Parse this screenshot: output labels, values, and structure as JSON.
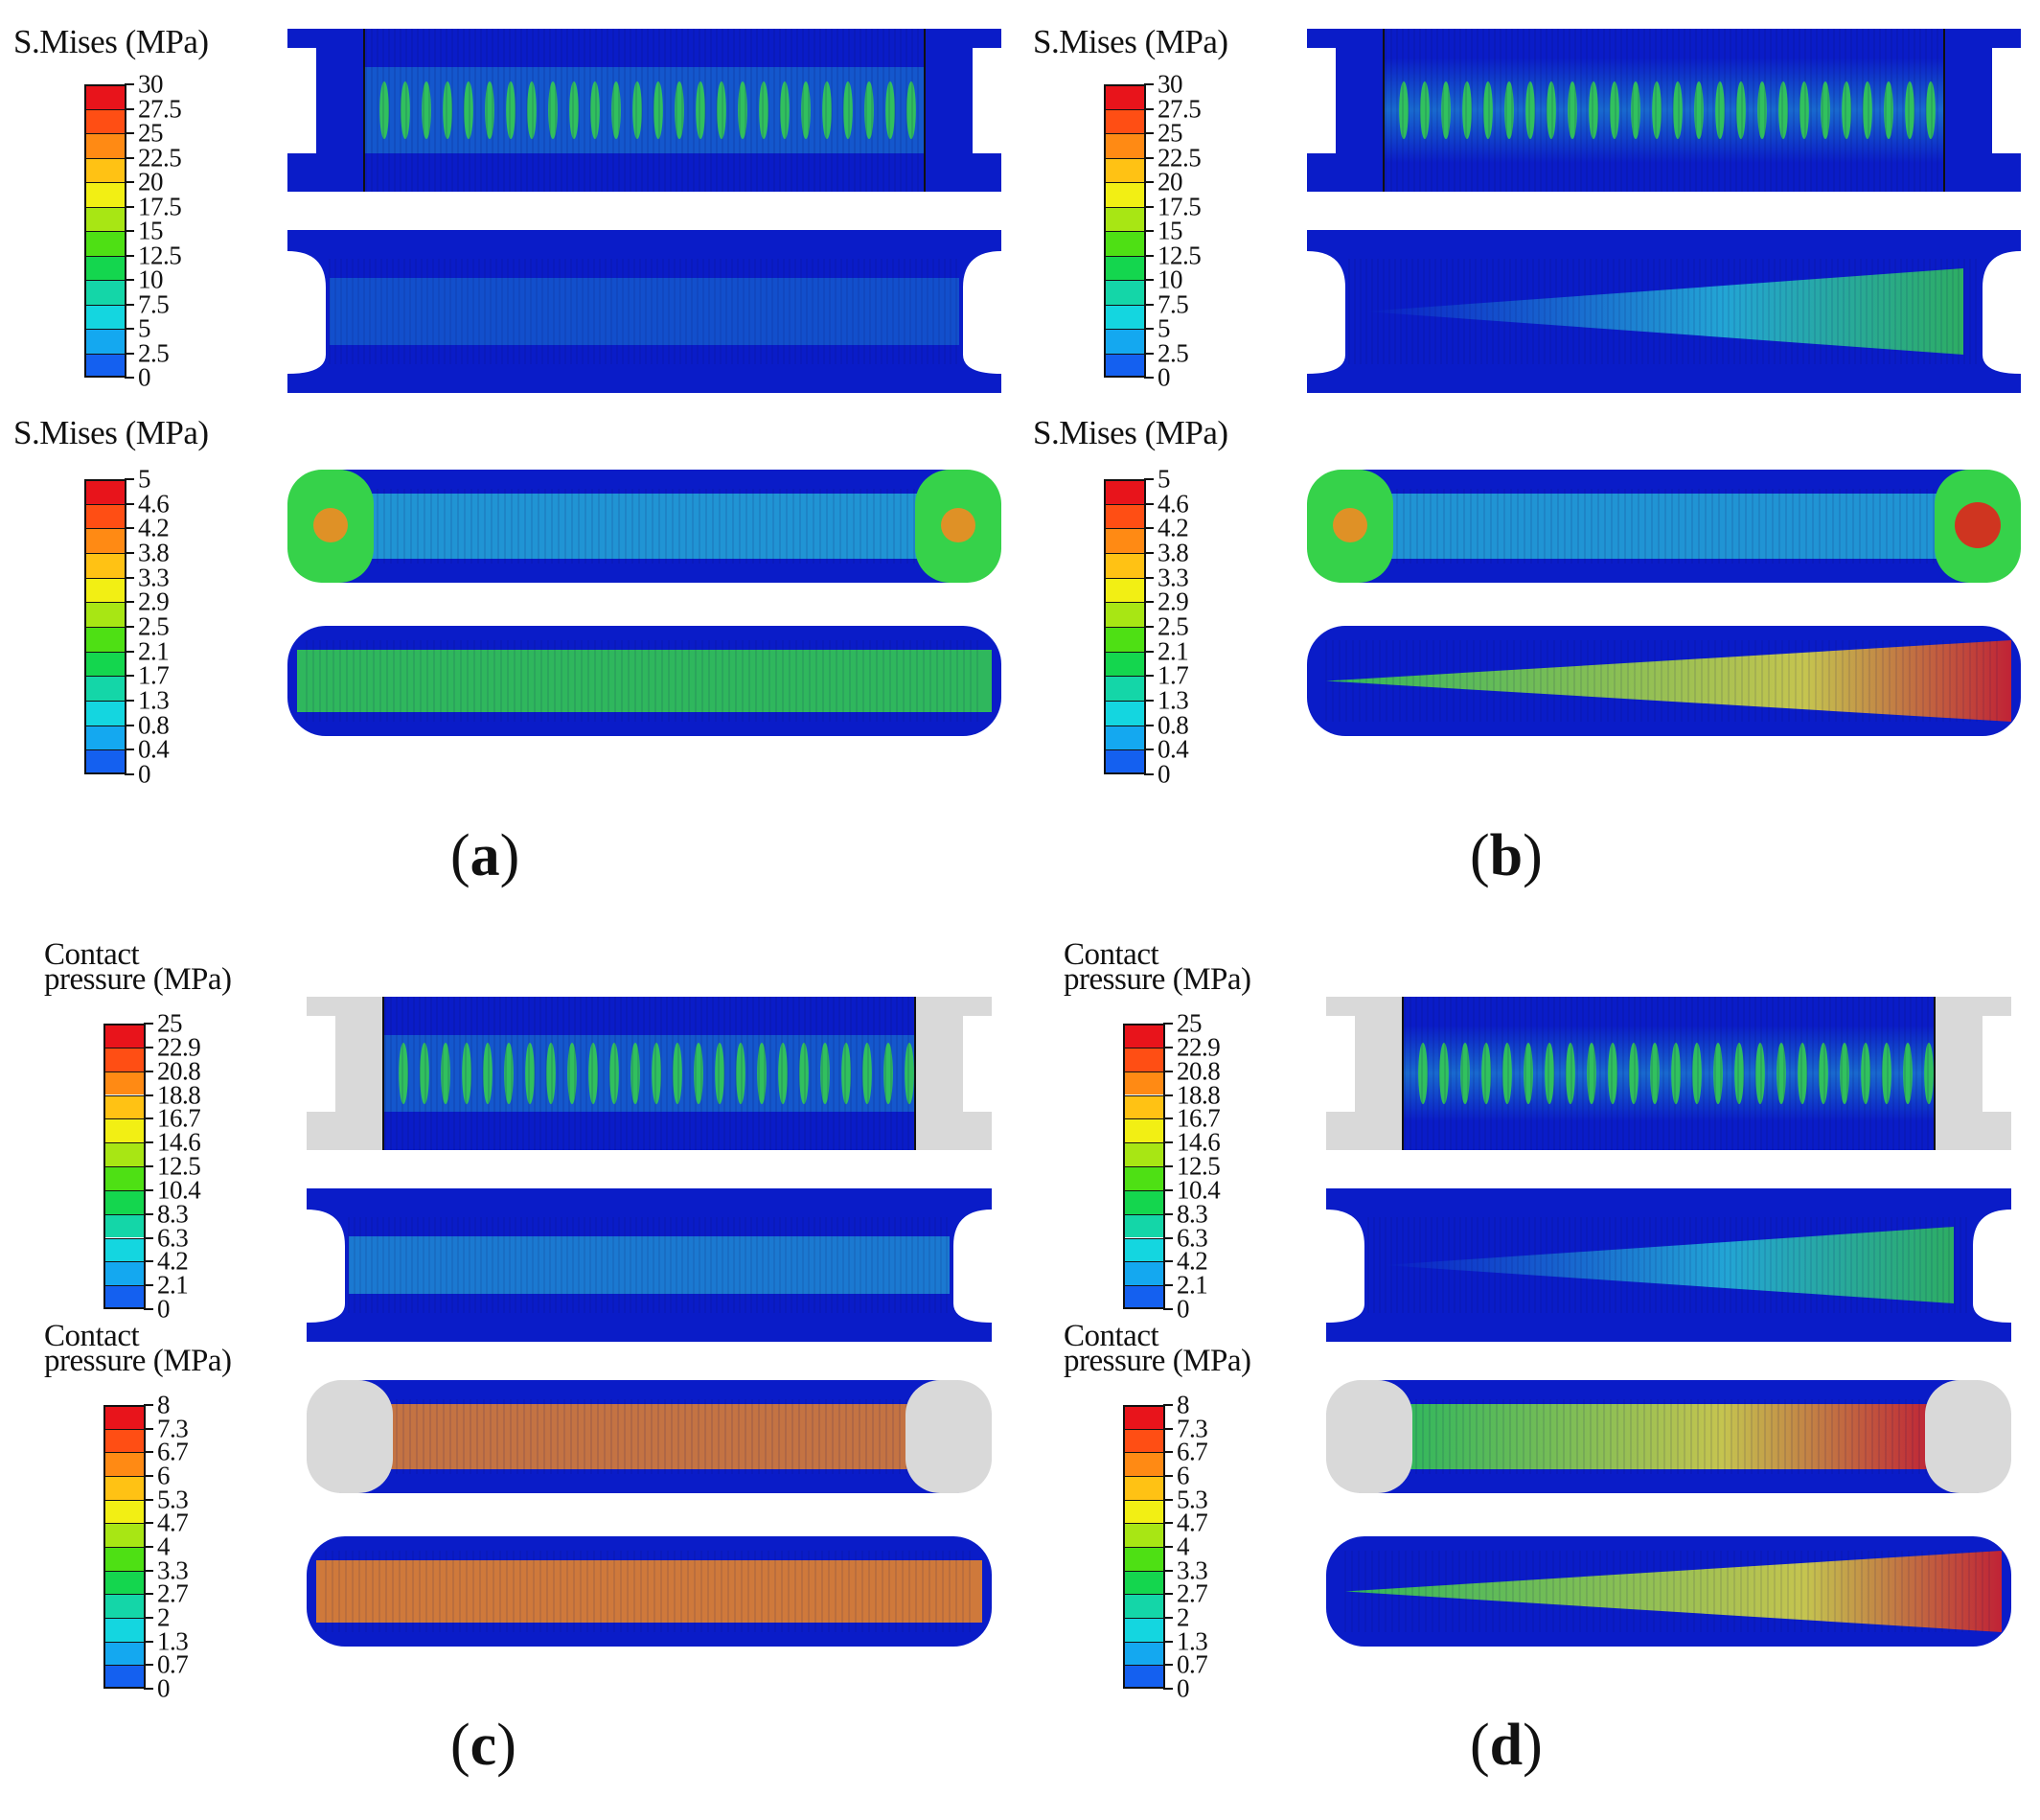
{
  "figure": {
    "panels": [
      {
        "id": "a",
        "label_open": "(",
        "label_letter": "a",
        "label_close": ")",
        "variant": "uniform",
        "blocks": [
          {
            "title_lines": [
              "S.Mises (MPa)"
            ],
            "ticks": [
              "30",
              "27.5",
              "25",
              "22.5",
              "20",
              "17.5",
              "15",
              "12.5",
              "10",
              "7.5",
              "5",
              "2.5",
              "0"
            ],
            "kind": "frame"
          },
          {
            "title_lines": [
              "S.Mises (MPa)"
            ],
            "ticks": [
              "5",
              "4.6",
              "4.2",
              "3.8",
              "3.3",
              "2.9",
              "2.5",
              "2.1",
              "1.7",
              "1.3",
              "0.8",
              "0.4",
              "0"
            ],
            "kind": "seal"
          }
        ]
      },
      {
        "id": "b",
        "label_open": "(",
        "label_letter": "b",
        "label_close": ")",
        "variant": "tapered",
        "blocks": [
          {
            "title_lines": [
              "S.Mises (MPa)"
            ],
            "ticks": [
              "30",
              "27.5",
              "25",
              "22.5",
              "20",
              "17.5",
              "15",
              "12.5",
              "10",
              "7.5",
              "5",
              "2.5",
              "0"
            ],
            "kind": "frame"
          },
          {
            "title_lines": [
              "S.Mises (MPa)"
            ],
            "ticks": [
              "5",
              "4.6",
              "4.2",
              "3.8",
              "3.3",
              "2.9",
              "2.5",
              "2.1",
              "1.7",
              "1.3",
              "0.8",
              "0.4",
              "0"
            ],
            "kind": "seal"
          }
        ]
      },
      {
        "id": "c",
        "label_open": "(",
        "label_letter": "c",
        "label_close": ")",
        "variant": "uniform",
        "blocks": [
          {
            "title_lines": [
              "Contact",
              "pressure (MPa)"
            ],
            "ticks": [
              "25",
              "22.9",
              "20.8",
              "18.8",
              "16.7",
              "14.6",
              "12.5",
              "10.4",
              "8.3",
              "6.3",
              "4.2",
              "2.1",
              "0"
            ],
            "kind": "frame-contact"
          },
          {
            "title_lines": [
              "Contact",
              "pressure (MPa)"
            ],
            "ticks": [
              "8",
              "7.3",
              "6.7",
              "6",
              "5.3",
              "4.7",
              "4",
              "3.3",
              "2.7",
              "2",
              "1.3",
              "0.7",
              "0"
            ],
            "kind": "seal-contact"
          }
        ]
      },
      {
        "id": "d",
        "label_open": "(",
        "label_letter": "d",
        "label_close": ")",
        "variant": "tapered",
        "blocks": [
          {
            "title_lines": [
              "Contact",
              "pressure (MPa)"
            ],
            "ticks": [
              "25",
              "22.9",
              "20.8",
              "18.8",
              "16.7",
              "14.6",
              "12.5",
              "10.4",
              "8.3",
              "6.3",
              "4.2",
              "2.1",
              "0"
            ],
            "kind": "frame-contact"
          },
          {
            "title_lines": [
              "Contact",
              "pressure (MPa)"
            ],
            "ticks": [
              "8",
              "7.3",
              "6.7",
              "6",
              "5.3",
              "4.7",
              "4",
              "3.3",
              "2.7",
              "2",
              "1.3",
              "0.7",
              "0"
            ],
            "kind": "seal-contact"
          }
        ]
      }
    ],
    "legend_colors": [
      "#e8141b",
      "#ff4e14",
      "#ff8a14",
      "#ffc214",
      "#f2ef14",
      "#a8e614",
      "#4ee014",
      "#14d64e",
      "#14d6a8",
      "#14d6e0",
      "#14a8f0",
      "#1460f0",
      "#0a16d8"
    ],
    "colors": {
      "background": "#0a1cc8",
      "dark_blue": "#0b17b8",
      "cyan": "#29c7d8",
      "green": "#36d24a",
      "yellow": "#e6e23a",
      "red": "#e0241c",
      "orange": "#f28a22",
      "mesh_grey": "#d9d9d9"
    }
  }
}
